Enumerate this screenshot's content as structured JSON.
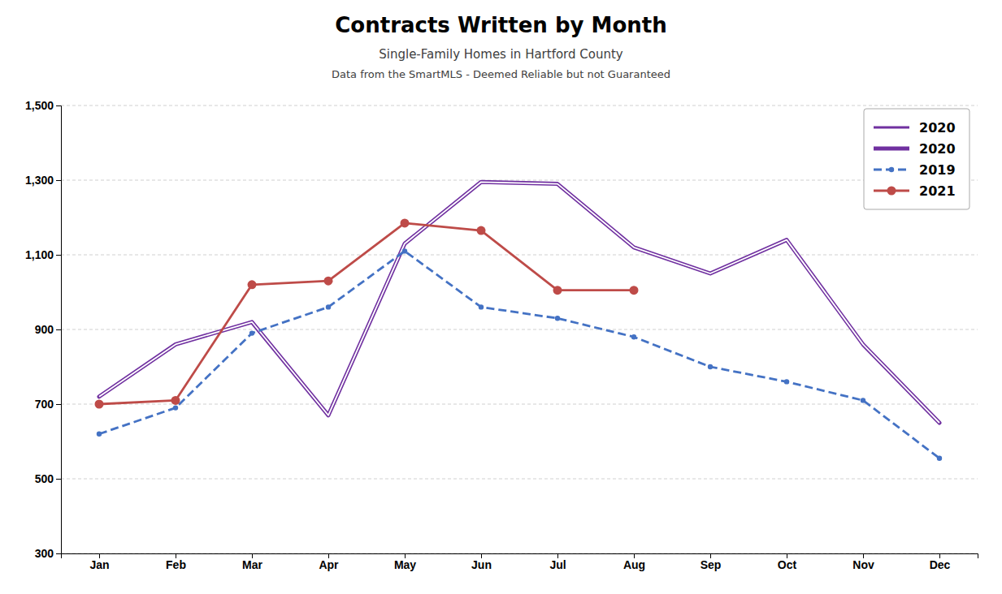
{
  "chart_data": {
    "type": "line",
    "title": "Contracts Written by Month",
    "subtitle": [
      "Single-Family Homes in Hartford County",
      "Data from the SmartMLS - Deemed Reliable but not Guaranteed"
    ],
    "categories": [
      "Jan",
      "Feb",
      "Mar",
      "Apr",
      "May",
      "Jun",
      "Jul",
      "Aug",
      "Sep",
      "Oct",
      "Nov",
      "Dec"
    ],
    "series": [
      {
        "name": "2020",
        "color": "#7030A0",
        "line_style": "solid",
        "marker": "none",
        "values": [
          720,
          860,
          920,
          670,
          1130,
          1295,
          1290,
          1120,
          1050,
          1140,
          860,
          650
        ]
      },
      {
        "name": "2020",
        "color": "#7030A0",
        "line_style": "double",
        "marker": "none",
        "values": [
          720,
          860,
          920,
          670,
          1130,
          1295,
          1290,
          1120,
          1050,
          1140,
          860,
          650
        ]
      },
      {
        "name": "2019",
        "color": "#4472C4",
        "line_style": "dashed",
        "marker": "point",
        "values": [
          620,
          690,
          890,
          960,
          1110,
          960,
          930,
          880,
          800,
          760,
          710,
          555
        ]
      },
      {
        "name": "2021",
        "color": "#BE4B48",
        "line_style": "solid",
        "marker": "circle",
        "values": [
          700,
          710,
          1020,
          1030,
          1185,
          1165,
          1005,
          1005,
          null,
          null,
          null,
          null
        ]
      }
    ],
    "ylim": [
      300,
      1500
    ],
    "yticks": [
      300,
      500,
      700,
      900,
      {
        "value": 1100,
        "label": "1,100"
      },
      {
        "value": 1300,
        "label": "1,300"
      },
      {
        "value": 1500,
        "label": "1,500"
      }
    ],
    "grid": true,
    "legend": "upper right"
  }
}
